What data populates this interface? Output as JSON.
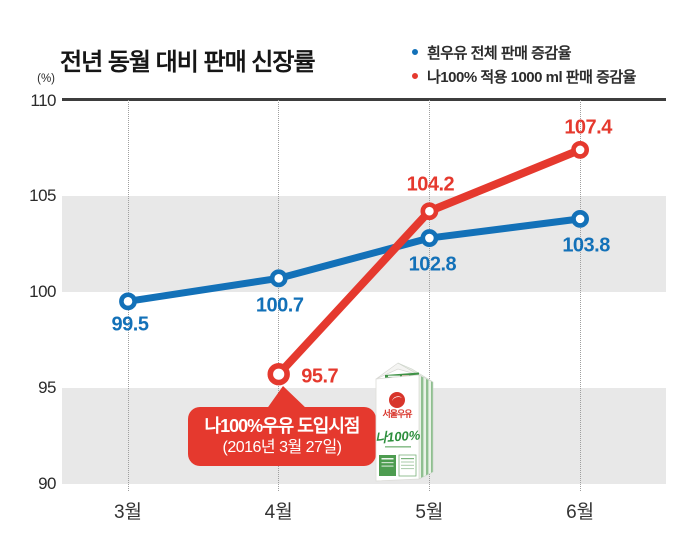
{
  "title": "전년 동월 대비 판매 신장률",
  "legend": [
    {
      "label": "흰우유 전체 판매 증감율",
      "color": "#1371b8"
    },
    {
      "label": "나100% 적용 1000 ml 판매 증감율",
      "color": "#e5392e"
    }
  ],
  "callout": {
    "line1": "나100%우유 도입시점",
    "line2": "(2016년 3월 27일)"
  },
  "milk_carton": {
    "brand": "서울우유",
    "product": "나100%"
  },
  "colors": {
    "blue_series": "#1371b8",
    "red_series": "#e5392e",
    "grid_band": "#e8e8e8",
    "axis_line": "#3d3d3d"
  },
  "chart_data": {
    "type": "line",
    "categories": [
      "3월",
      "4월",
      "5월",
      "6월"
    ],
    "series": [
      {
        "name": "흰우유 전체 판매 증감율",
        "color": "#1371b8",
        "values": [
          99.5,
          100.7,
          102.8,
          103.8
        ]
      },
      {
        "name": "나100% 적용 1000 ml 판매 증감율",
        "color": "#e5392e",
        "values": [
          null,
          95.7,
          104.2,
          107.4
        ]
      }
    ],
    "title": "전년 동월 대비 판매 신장률",
    "xlabel": "",
    "ylabel": "(%)",
    "ylim": [
      90,
      110
    ],
    "yticks": [
      110,
      105,
      100,
      95,
      90
    ],
    "grid_bands": [
      [
        100,
        105
      ],
      [
        90,
        95
      ]
    ],
    "legend_position": "top-right",
    "annotation": "나100%우유 도입시점 (2016년 3월 27일)"
  }
}
